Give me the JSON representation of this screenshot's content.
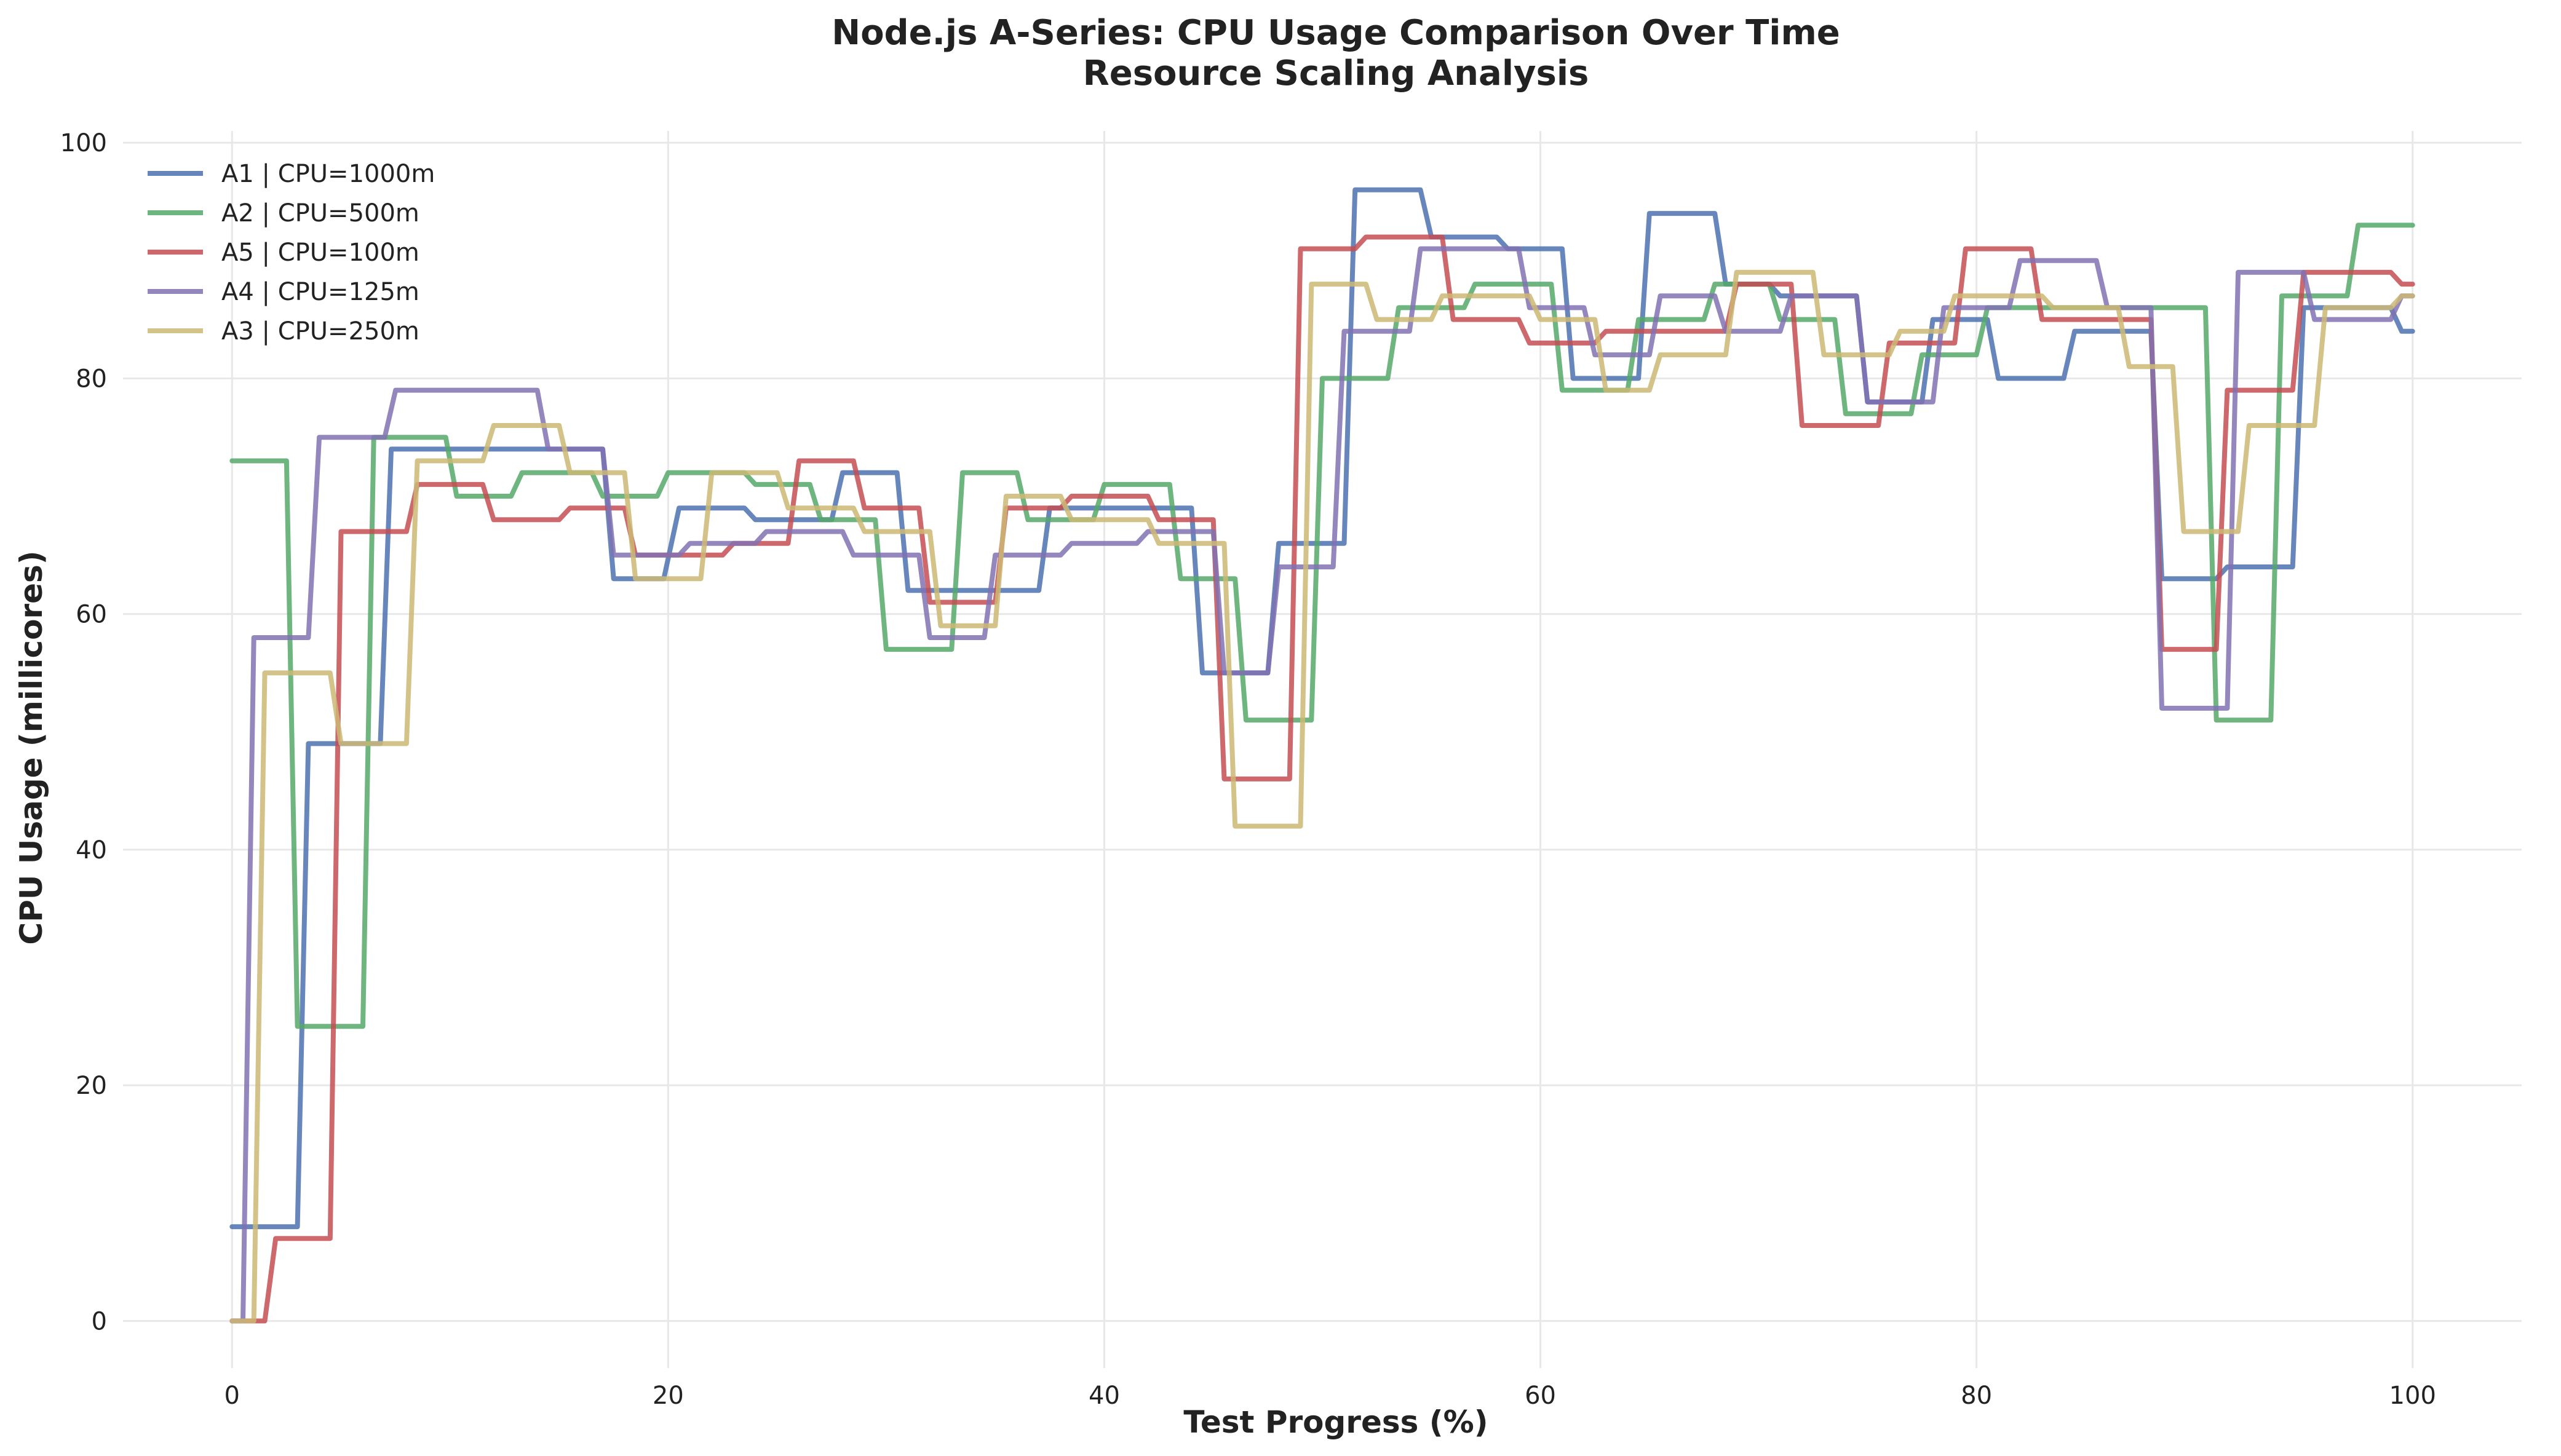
{
  "chart_data": {
    "type": "line",
    "title": "Node.js A-Series: CPU Usage Comparison Over Time",
    "subtitle": "Resource Scaling Analysis",
    "xlabel": "Test Progress (%)",
    "ylabel": "CPU Usage (millicores)",
    "xlim": [
      -5,
      105
    ],
    "ylim": [
      -4,
      101
    ],
    "x_ticks": [
      0,
      20,
      40,
      60,
      80,
      100
    ],
    "y_ticks": [
      0,
      20,
      40,
      60,
      80,
      100
    ],
    "grid": true,
    "legend_position": "top-left",
    "step": "post",
    "series": [
      {
        "name": "A1 | CPU=1000m",
        "color": "#4c72b0",
        "x": [
          0,
          3,
          3.5,
          6.8,
          7.3,
          17,
          17.5,
          19.8,
          20.5,
          23.5,
          24,
          27.5,
          28,
          30.5,
          31,
          37,
          37.5,
          44,
          44.5,
          47.5,
          48,
          51,
          51.5,
          54.5,
          55,
          58,
          58.5,
          61,
          61.5,
          64.5,
          65,
          68,
          68.5,
          70.5,
          71,
          74.5,
          75,
          77.5,
          78,
          80.5,
          81,
          84,
          84.5,
          88,
          88.5,
          91,
          91.5,
          94.5,
          95,
          99,
          99.5,
          100
        ],
        "values": [
          8,
          8,
          49,
          49,
          74,
          74,
          63,
          63,
          69,
          69,
          68,
          68,
          72,
          72,
          62,
          62,
          69,
          69,
          55,
          55,
          66,
          66,
          96,
          96,
          92,
          92,
          91,
          91,
          80,
          80,
          94,
          94,
          88,
          88,
          87,
          87,
          78,
          78,
          85,
          85,
          80,
          80,
          84,
          84,
          63,
          63,
          64,
          64,
          86,
          86,
          84,
          84
        ]
      },
      {
        "name": "A2 | CPU=500m",
        "color": "#55a868",
        "x": [
          0,
          2.5,
          3,
          6,
          6.5,
          9.8,
          10.3,
          12.8,
          13.3,
          16.5,
          17,
          19.5,
          20,
          23.5,
          24,
          26.5,
          27,
          29.5,
          30,
          33,
          33.5,
          36,
          36.5,
          39.5,
          40,
          43,
          43.5,
          46,
          46.5,
          49.5,
          50,
          53,
          53.5,
          56.5,
          57,
          60.5,
          61,
          64,
          64.5,
          67.5,
          68,
          70.5,
          71,
          73.5,
          74,
          77,
          77.5,
          80,
          80.5,
          82.5,
          83,
          90.5,
          91,
          93.5,
          94,
          97,
          97.5,
          100
        ],
        "values": [
          73,
          73,
          25,
          25,
          75,
          75,
          70,
          70,
          72,
          72,
          70,
          70,
          72,
          72,
          71,
          71,
          68,
          68,
          57,
          57,
          72,
          72,
          68,
          68,
          71,
          71,
          63,
          63,
          51,
          51,
          80,
          80,
          86,
          86,
          88,
          88,
          79,
          79,
          85,
          85,
          88,
          88,
          85,
          85,
          77,
          77,
          82,
          82,
          86,
          86,
          86,
          86,
          51,
          51,
          87,
          87,
          93,
          93
        ]
      },
      {
        "name": "A5 | CPU=100m",
        "color": "#c44e52",
        "x": [
          0,
          1.5,
          2,
          4.5,
          5,
          8,
          8.5,
          11.5,
          12,
          15,
          15.5,
          18,
          18.5,
          22.5,
          23,
          25.5,
          26,
          28.5,
          29,
          31.5,
          32,
          35,
          35.5,
          38,
          38.5,
          42,
          42.5,
          45,
          45.5,
          48.5,
          49,
          51.5,
          52,
          55.5,
          56,
          59,
          59.5,
          62.5,
          63,
          68.5,
          69,
          71.5,
          72,
          75.5,
          76,
          79,
          79.5,
          82.5,
          83,
          88,
          88.5,
          91,
          91.5,
          94.5,
          95,
          99,
          99.5,
          100
        ],
        "values": [
          0,
          0,
          7,
          7,
          67,
          67,
          71,
          71,
          68,
          68,
          69,
          69,
          65,
          65,
          66,
          66,
          73,
          73,
          69,
          69,
          61,
          61,
          69,
          69,
          70,
          70,
          68,
          68,
          46,
          46,
          91,
          91,
          92,
          92,
          85,
          85,
          83,
          83,
          84,
          84,
          88,
          88,
          76,
          76,
          83,
          83,
          91,
          91,
          85,
          85,
          57,
          57,
          79,
          79,
          89,
          89,
          88,
          88
        ]
      },
      {
        "name": "A4 | CPU=125m",
        "color": "#8172b2",
        "x": [
          0,
          0.5,
          1,
          3.5,
          4,
          7,
          7.5,
          14,
          14.5,
          17,
          17.5,
          20.5,
          21,
          24,
          24.5,
          28,
          28.5,
          31.5,
          32,
          34.5,
          35,
          38,
          38.5,
          41.5,
          42,
          45,
          45.5,
          47.5,
          48,
          50.5,
          51,
          54,
          54.5,
          59,
          59.5,
          62,
          62.5,
          65,
          65.5,
          68,
          68.5,
          71,
          71.5,
          74.5,
          75,
          78,
          78.5,
          81.5,
          82,
          85.5,
          86,
          88,
          88.5,
          91.5,
          92,
          95,
          95.5,
          99,
          99.5,
          100
        ],
        "values": [
          0,
          0,
          58,
          58,
          75,
          75,
          79,
          79,
          74,
          74,
          65,
          65,
          66,
          66,
          67,
          67,
          65,
          65,
          58,
          58,
          65,
          65,
          66,
          66,
          67,
          67,
          55,
          55,
          64,
          64,
          84,
          84,
          91,
          91,
          86,
          86,
          82,
          82,
          87,
          87,
          84,
          84,
          87,
          87,
          78,
          78,
          86,
          86,
          90,
          90,
          86,
          86,
          52,
          52,
          89,
          89,
          85,
          85,
          87,
          87
        ]
      },
      {
        "name": "A3 | CPU=250m",
        "color": "#ccb974",
        "x": [
          0,
          1,
          1.5,
          4.5,
          5,
          8,
          8.5,
          11.5,
          12,
          15,
          15.5,
          18,
          18.5,
          21.5,
          22,
          25,
          25.5,
          28.5,
          29,
          32,
          32.5,
          35,
          35.5,
          38,
          38.5,
          42,
          42.5,
          45.5,
          46,
          49,
          49.5,
          52,
          52.5,
          55,
          55.5,
          59.5,
          60,
          62.5,
          63,
          65,
          65.5,
          68.5,
          69,
          72.5,
          73,
          76,
          76.5,
          78.5,
          79,
          83,
          83.5,
          86.5,
          87,
          89,
          89.5,
          92,
          92.5,
          95.5,
          96,
          99,
          99.5,
          100
        ],
        "values": [
          0,
          0,
          55,
          55,
          49,
          49,
          73,
          73,
          76,
          76,
          72,
          72,
          63,
          63,
          72,
          72,
          69,
          69,
          67,
          67,
          59,
          59,
          70,
          70,
          68,
          68,
          66,
          66,
          42,
          42,
          88,
          88,
          85,
          85,
          87,
          87,
          85,
          85,
          79,
          79,
          82,
          82,
          89,
          89,
          82,
          82,
          84,
          84,
          87,
          87,
          86,
          86,
          81,
          81,
          67,
          67,
          76,
          76,
          86,
          86,
          87,
          87
        ]
      }
    ]
  }
}
